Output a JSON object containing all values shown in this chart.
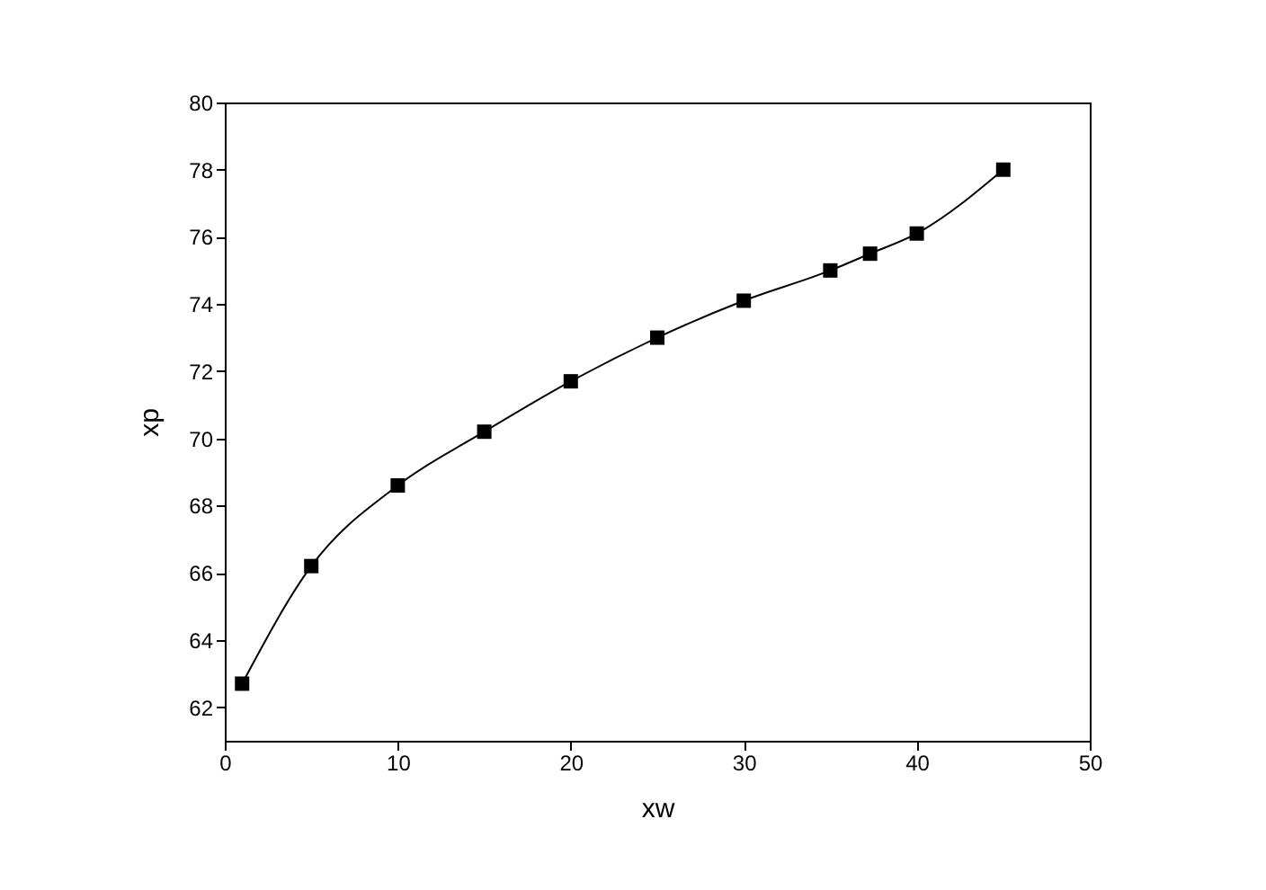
{
  "chart_data": {
    "type": "line",
    "xlabel": "xw",
    "ylabel": "xp",
    "x": [
      1,
      5,
      10,
      15,
      20,
      25,
      30,
      35,
      37.3,
      40,
      45
    ],
    "series": [
      {
        "color": "#000000",
        "values": [
          62.7,
          66.2,
          68.6,
          70.2,
          71.7,
          73.0,
          74.1,
          75.0,
          75.5,
          76.1,
          78.0
        ]
      }
    ],
    "xlim": [
      0,
      50
    ],
    "xticks": [
      0,
      10,
      20,
      30,
      40,
      50
    ],
    "ylim": [
      61,
      80
    ],
    "yticks": [
      62,
      64,
      66,
      68,
      70,
      72,
      74,
      76,
      78,
      80
    ],
    "marker": "square",
    "line_style": "solid",
    "grid": false,
    "legend": false
  }
}
